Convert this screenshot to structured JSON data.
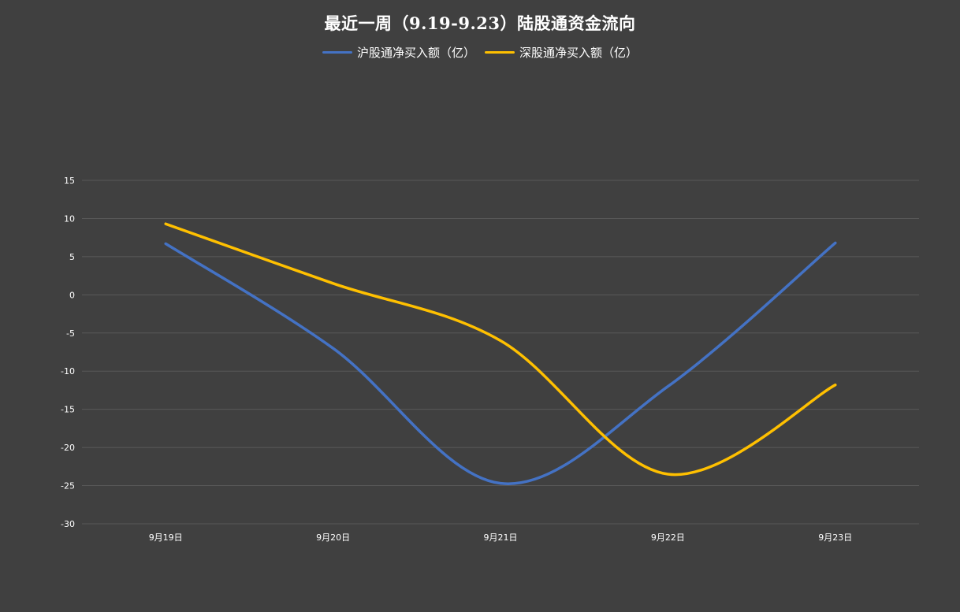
{
  "chart_data": {
    "type": "line",
    "title": "最近一周（9.19-9.23）陆股通资金流向",
    "categories": [
      "9月19日",
      "9月20日",
      "9月21日",
      "9月22日",
      "9月23日"
    ],
    "series": [
      {
        "name": "沪股通净买入额（亿）",
        "color": "#4472C4",
        "values": [
          6.7,
          -7.0,
          -24.7,
          -12.0,
          6.8
        ]
      },
      {
        "name": "深股通净买入额（亿）",
        "color": "#FFC000",
        "values": [
          9.3,
          1.5,
          -6.0,
          -23.5,
          -11.8
        ]
      }
    ],
    "ylim": [
      -30,
      15
    ],
    "yticks": [
      "15",
      "10",
      "5",
      "0",
      "-5",
      "-10",
      "-15",
      "-20",
      "-25",
      "-30"
    ],
    "smooth": true,
    "grid": true,
    "legend_position": "top"
  }
}
